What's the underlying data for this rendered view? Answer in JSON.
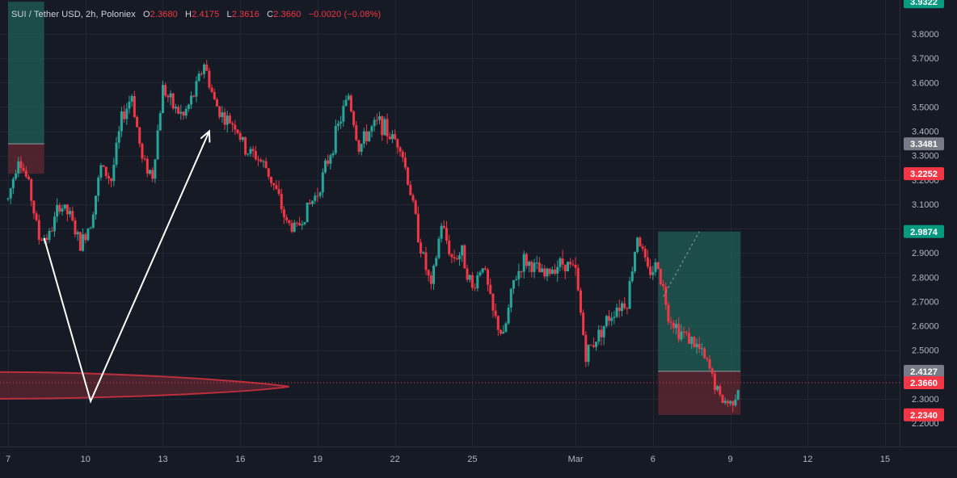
{
  "header": {
    "symbol": "SUI / Tether USD",
    "interval": "2h",
    "exchange": "Poloniex",
    "ohlc": [
      {
        "label": "O",
        "value": "2.3680"
      },
      {
        "label": "H",
        "value": "2.4175"
      },
      {
        "label": "L",
        "value": "2.3616"
      },
      {
        "label": "C",
        "value": "2.3660"
      }
    ],
    "change": "−0.0020 (−0.08%)"
  },
  "colors": {
    "background": "#161a25",
    "grid": "#232734",
    "up": "#26a69a",
    "down": "#f23645",
    "axis_text": "#b2b5be",
    "long_profit_zone": "#1f5f55",
    "long_stop_zone": "#5c2631",
    "price_line": "#f23645",
    "arrow": "#ffffff"
  },
  "chart_data": {
    "type": "candlestick",
    "title": "SUI / Tether USD, 2h, Poloniex",
    "ylim": [
      2.15,
      3.95
    ],
    "y_ticks": [
      "3.8000",
      "3.7000",
      "3.6000",
      "3.5000",
      "3.4000",
      "3.3000",
      "3.2000",
      "3.1000",
      "3.0000",
      "2.9000",
      "2.8000",
      "2.7000",
      "2.6000",
      "2.5000",
      "2.4000",
      "2.3000",
      "2.2000"
    ],
    "x_ticks": [
      "7",
      "10",
      "13",
      "16",
      "19",
      "22",
      "25",
      "Mar",
      "6",
      "9",
      "12",
      "15"
    ],
    "x_tick_days": [
      7,
      10,
      13,
      16,
      19,
      22,
      25,
      29,
      32,
      35,
      38,
      41
    ],
    "x_range_days": [
      7.0,
      41.0
    ],
    "close_series": {
      "x_days": [
        7.0,
        7.4,
        7.8,
        8.2,
        8.6,
        9.0,
        9.4,
        9.8,
        10.2,
        10.6,
        11.0,
        11.4,
        11.8,
        12.2,
        12.6,
        13.0,
        13.4,
        13.8,
        14.2,
        14.6,
        15.0,
        15.4,
        15.8,
        16.2,
        16.6,
        17.0,
        17.4,
        17.8,
        18.2,
        18.6,
        19.0,
        19.4,
        19.8,
        20.2,
        20.6,
        21.0,
        21.4,
        21.8,
        22.2,
        22.6,
        23.0,
        23.4,
        23.8,
        24.2,
        24.6,
        25.0,
        25.4,
        25.8,
        26.2,
        26.6,
        27.0,
        27.4,
        27.8,
        28.2,
        28.6,
        29.0,
        29.4,
        29.8,
        30.2,
        30.6,
        31.0,
        31.4,
        31.8,
        32.2,
        32.6,
        33.0,
        33.4,
        33.8,
        34.2,
        34.6,
        35.0,
        35.4
      ],
      "close": [
        3.12,
        3.3,
        3.18,
        2.96,
        2.97,
        3.1,
        3.05,
        2.93,
        3.03,
        3.25,
        3.2,
        3.45,
        3.55,
        3.28,
        3.22,
        3.58,
        3.5,
        3.46,
        3.55,
        3.68,
        3.52,
        3.45,
        3.43,
        3.32,
        3.3,
        3.25,
        3.15,
        3.02,
        3.0,
        3.08,
        3.15,
        3.28,
        3.42,
        3.55,
        3.33,
        3.4,
        3.44,
        3.38,
        3.35,
        3.15,
        2.92,
        2.75,
        3.02,
        2.88,
        2.9,
        2.75,
        2.86,
        2.65,
        2.55,
        2.78,
        2.87,
        2.84,
        2.8,
        2.85,
        2.86,
        2.82,
        2.48,
        2.55,
        2.62,
        2.68,
        2.7,
        2.98,
        2.82,
        2.85,
        2.65,
        2.58,
        2.55,
        2.5,
        2.42,
        2.3,
        2.28,
        2.37
      ]
    },
    "price_labels": [
      {
        "value": 3.9322,
        "text": "3.9322",
        "color": "#089981"
      },
      {
        "value": 3.3481,
        "text": "3.3481",
        "color": "#787b86"
      },
      {
        "value": 3.2252,
        "text": "3.2252",
        "color": "#f23645"
      },
      {
        "value": 2.9874,
        "text": "2.9874",
        "color": "#089981"
      },
      {
        "value": 2.4127,
        "text": "2.4127",
        "color": "#787b86"
      },
      {
        "value": 2.366,
        "text": "2.3660",
        "color": "#f23645"
      },
      {
        "value": 2.234,
        "text": "2.2340",
        "color": "#f23645"
      }
    ],
    "current_price": 2.366,
    "long_positions": [
      {
        "x_days": [
          7.0,
          8.4
        ],
        "entry": 3.3481,
        "target": 3.9322,
        "stop": 3.2252
      },
      {
        "x_days": [
          32.2,
          35.4
        ],
        "entry": 2.4127,
        "target": 2.9874,
        "stop": 2.234
      }
    ],
    "drawn_path": [
      {
        "day": 8.4,
        "price": 2.96
      },
      {
        "day": 10.2,
        "price": 2.29
      },
      {
        "day": 14.8,
        "price": 3.4
      }
    ],
    "volume_profile_band": {
      "x_days": [
        7.0,
        17.9
      ],
      "price": 2.35,
      "top": 2.41,
      "bottom": 2.3
    },
    "grid": true
  }
}
